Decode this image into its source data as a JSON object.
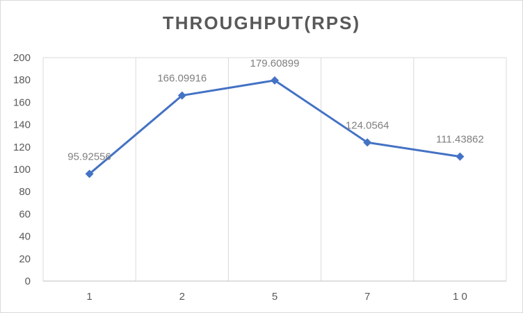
{
  "chart_data": {
    "type": "line",
    "title": "THROUGHPUT(RPS)",
    "xlabel": "",
    "ylabel": "",
    "categories": [
      "1",
      "2",
      "5",
      "7",
      "10"
    ],
    "series": [
      {
        "values": [
          95.92556,
          166.09916,
          179.60899,
          124.0564,
          111.43862
        ],
        "labels": [
          "95.92556",
          "166.09916",
          "179.60899",
          "124.0564",
          "111.43862"
        ],
        "color": "#4472c4"
      }
    ],
    "ylim": [
      0,
      200
    ],
    "yticks": [
      "0",
      "20",
      "40",
      "60",
      "80",
      "100",
      "120",
      "140",
      "160",
      "180",
      "200"
    ],
    "xtick_labels": [
      "1",
      "2",
      "5",
      "7",
      "1 0"
    ],
    "grid": "vertical",
    "legend": "none"
  }
}
